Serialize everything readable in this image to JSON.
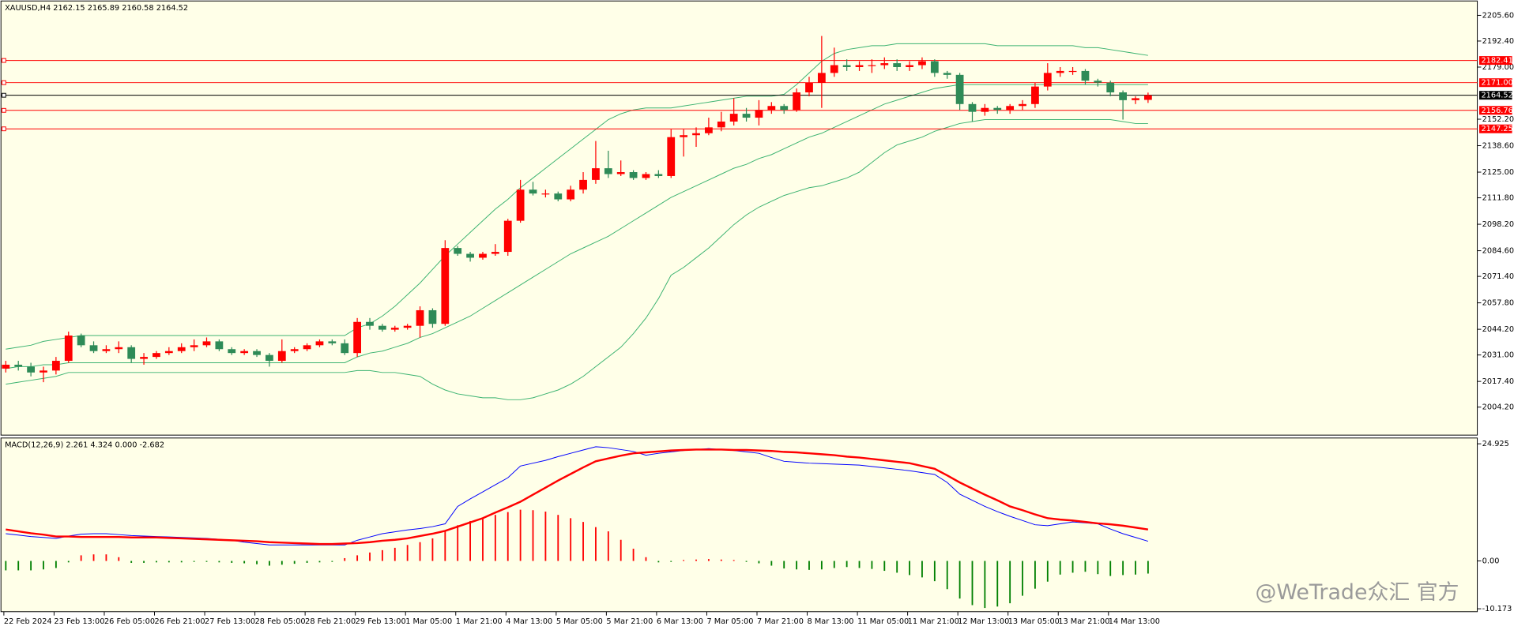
{
  "chart_data": [
    {
      "type": "candlestick",
      "title": "XAUUSD,H4  2162.15 2165.89 2160.58 2164.52",
      "categories": [
        "22 Feb 2024",
        null,
        null,
        null,
        "23 Feb 13:00",
        null,
        null,
        null,
        "26 Feb 05:00",
        null,
        null,
        null,
        "26 Feb 21:00",
        null,
        null,
        null,
        "27 Feb 13:00",
        null,
        null,
        null,
        "28 Feb 05:00",
        null,
        null,
        null,
        "28 Feb 21:00",
        null,
        null,
        null,
        "29 Feb 13:00",
        null,
        null,
        null,
        "1 Mar 05:00",
        null,
        null,
        null,
        "1 Mar 21:00",
        null,
        null,
        null,
        "4 Mar 13:00",
        null,
        null,
        null,
        "5 Mar 05:00",
        null,
        null,
        null,
        "5 Mar 21:00",
        null,
        null,
        null,
        "6 Mar 13:00",
        null,
        null,
        null,
        "7 Mar 05:00",
        null,
        null,
        null,
        "7 Mar 21:00",
        null,
        null,
        null,
        "8 Mar 13:00",
        null,
        null,
        null,
        "11 Mar 05:00",
        null,
        null,
        null,
        "11 Mar 21:00",
        null,
        null,
        null,
        "12 Mar 13:00",
        null,
        null,
        null,
        "13 Mar 05:00",
        null,
        null,
        null,
        "13 Mar 21:00",
        null,
        null,
        null,
        "14 Mar 13:00",
        null,
        null,
        null
      ],
      "open": [
        2024,
        2026,
        2025,
        2022,
        2023,
        2028,
        2041,
        2036,
        2033,
        2034,
        2035,
        2029,
        2030,
        2032,
        2033,
        2035,
        2036,
        2038,
        2034,
        2032,
        2033,
        2031,
        2028,
        2033,
        2034,
        2036,
        2038,
        2037,
        2032,
        2048,
        2046,
        2044,
        2045,
        2046,
        2054,
        2047,
        2086,
        2083,
        2081,
        2083,
        2084,
        2100,
        2116,
        2114,
        2114,
        2111,
        2116,
        2121,
        2127,
        2124,
        2125,
        2122,
        2124,
        2123,
        2143,
        2144,
        2145,
        2148,
        2151,
        2155,
        2153,
        2157,
        2159,
        2157,
        2166,
        2171,
        2176,
        2180,
        2179,
        2180,
        2180,
        2181,
        2179,
        2180,
        2182,
        2176,
        2175,
        2160,
        2156,
        2158,
        2157,
        2159,
        2160,
        2169,
        2176,
        2177,
        2177,
        2172,
        2171,
        2166,
        2162,
        2162.15
      ],
      "high": [
        2028,
        2028,
        2027,
        2025,
        2030,
        2043,
        2042,
        2038,
        2036,
        2038,
        2036,
        2032,
        2033,
        2035,
        2037,
        2039,
        2040,
        2039,
        2035,
        2034,
        2034,
        2032,
        2039,
        2035,
        2037,
        2039,
        2039,
        2039,
        2050,
        2050,
        2047,
        2046,
        2047,
        2056,
        2055,
        2090,
        2087,
        2084,
        2084,
        2088,
        2101,
        2121,
        2120,
        2116,
        2115,
        2118,
        2125,
        2141,
        2136,
        2131,
        2126,
        2125,
        2126,
        2147,
        2147,
        2148,
        2153,
        2156,
        2163,
        2158,
        2162,
        2161,
        2160,
        2168,
        2174,
        2195,
        2189,
        2183,
        2182,
        2183,
        2184,
        2183,
        2182,
        2184,
        2183,
        2177,
        2176,
        2161,
        2160,
        2159,
        2160,
        2162,
        2171,
        2181,
        2179,
        2179,
        2178,
        2173,
        2172,
        2167,
        2164,
        2165.89
      ],
      "low": [
        2022,
        2023,
        2020,
        2017,
        2021,
        2027,
        2035,
        2032,
        2032,
        2032,
        2027,
        2026,
        2029,
        2031,
        2032,
        2033,
        2035,
        2033,
        2031,
        2031,
        2030,
        2025,
        2027,
        2032,
        2033,
        2035,
        2036,
        2031,
        2030,
        2044,
        2043,
        2043,
        2044,
        2040,
        2045,
        2046,
        2082,
        2079,
        2080,
        2082,
        2082,
        2099,
        2113,
        2112,
        2110,
        2110,
        2114,
        2119,
        2122,
        2123,
        2121,
        2121,
        2122,
        2122,
        2133,
        2138,
        2144,
        2146,
        2149,
        2151,
        2149,
        2155,
        2155,
        2156,
        2164,
        2158,
        2174,
        2177,
        2177,
        2176,
        2178,
        2177,
        2177,
        2178,
        2174,
        2173,
        2157,
        2151,
        2154,
        2155,
        2155,
        2157,
        2158,
        2167,
        2174,
        2175,
        2170,
        2169,
        2164,
        2152,
        2160,
        2160.58
      ],
      "close": [
        2026,
        2025,
        2022,
        2023,
        2028,
        2041,
        2036,
        2033,
        2034,
        2035,
        2029,
        2030,
        2032,
        2033,
        2035,
        2036,
        2038,
        2034,
        2032,
        2033,
        2031,
        2028,
        2033,
        2034,
        2036,
        2038,
        2037,
        2032,
        2048,
        2046,
        2044,
        2045,
        2046,
        2054,
        2047,
        2086,
        2083,
        2081,
        2083,
        2084,
        2100,
        2116,
        2114,
        2114,
        2111,
        2116,
        2121,
        2127,
        2124,
        2125,
        2122,
        2124,
        2123,
        2143,
        2144,
        2145,
        2148,
        2151,
        2155,
        2153,
        2157,
        2159,
        2157,
        2166,
        2171,
        2176,
        2180,
        2179,
        2180,
        2180,
        2181,
        2179,
        2180,
        2182,
        2176,
        2175,
        2160,
        2156,
        2158,
        2157,
        2159,
        2160,
        2169,
        2176,
        2177,
        2177,
        2172,
        2171,
        2166,
        2162,
        2163,
        2164.52
      ],
      "color_up": "#ff0000",
      "color_down": "#2e8b57",
      "bands": [
        {
          "color": "#3cb371",
          "values": [
            2034,
            2035,
            2036,
            2038,
            2039,
            2040,
            2041,
            2041,
            2041,
            2041,
            2041,
            2041,
            2041,
            2041,
            2041,
            2041,
            2041,
            2041,
            2041,
            2041,
            2041,
            2041,
            2041,
            2041,
            2041,
            2041,
            2041,
            2041,
            2045,
            2047,
            2051,
            2056,
            2062,
            2068,
            2075,
            2082,
            2088,
            2094,
            2100,
            2106,
            2111,
            2117,
            2122,
            2127,
            2132,
            2137,
            2142,
            2147,
            2152,
            2155,
            2157,
            2158,
            2158,
            2158,
            2159,
            2160,
            2161,
            2162,
            2163,
            2164,
            2164,
            2164,
            2165,
            2170,
            2176,
            2182,
            2186,
            2188,
            2189,
            2190,
            2190,
            2191,
            2191,
            2191,
            2191,
            2191,
            2191,
            2191,
            2191,
            2190,
            2190,
            2190,
            2190,
            2190,
            2190,
            2190,
            2189,
            2189,
            2188,
            2187,
            2186,
            2185
          ]
        },
        {
          "color": "#3cb371",
          "values": [
            2024,
            2025,
            2025,
            2026,
            2026,
            2027,
            2027,
            2027,
            2027,
            2027,
            2027,
            2027,
            2027,
            2027,
            2027,
            2027,
            2027,
            2027,
            2027,
            2027,
            2027,
            2027,
            2027,
            2027,
            2027,
            2027,
            2027,
            2027,
            2030,
            2032,
            2033,
            2035,
            2037,
            2040,
            2042,
            2045,
            2048,
            2051,
            2055,
            2059,
            2063,
            2067,
            2071,
            2075,
            2079,
            2083,
            2086,
            2089,
            2092,
            2096,
            2100,
            2104,
            2108,
            2112,
            2115,
            2118,
            2121,
            2124,
            2127,
            2129,
            2132,
            2134,
            2137,
            2140,
            2143,
            2145,
            2148,
            2151,
            2154,
            2157,
            2160,
            2162,
            2164,
            2166,
            2168,
            2169,
            2170,
            2170,
            2170,
            2170,
            2170,
            2170,
            2170,
            2170,
            2170,
            2170,
            2170,
            2170,
            2170,
            2170,
            2170,
            2170
          ]
        },
        {
          "color": "#3cb371",
          "values": [
            2016,
            2017,
            2018,
            2019,
            2020,
            2022,
            2022,
            2022,
            2022,
            2022,
            2022,
            2022,
            2022,
            2022,
            2022,
            2022,
            2022,
            2022,
            2022,
            2022,
            2022,
            2022,
            2022,
            2022,
            2022,
            2022,
            2022,
            2022,
            2023,
            2023,
            2022,
            2022,
            2021,
            2020,
            2016,
            2013,
            2011,
            2010,
            2009,
            2009,
            2008,
            2008,
            2009,
            2011,
            2013,
            2016,
            2020,
            2025,
            2030,
            2035,
            2042,
            2050,
            2060,
            2072,
            2076,
            2081,
            2086,
            2092,
            2098,
            2103,
            2107,
            2110,
            2113,
            2115,
            2117,
            2118,
            2120,
            2122,
            2125,
            2130,
            2135,
            2139,
            2141,
            2143,
            2146,
            2148,
            2150,
            2151,
            2152,
            2152,
            2152,
            2152,
            2152,
            2152,
            2152,
            2152,
            2152,
            2152,
            2152,
            2151,
            2150,
            2150
          ]
        }
      ],
      "price_lines": [
        {
          "value": 2182.41,
          "label": "2182.41",
          "color": "#ff0000"
        },
        {
          "value": 2171,
          "label": "2171.00",
          "color": "#ff0000"
        },
        {
          "value": 2164.52,
          "label": "2164.52",
          "color": "#000000"
        },
        {
          "value": 2156.76,
          "label": "2156.76",
          "color": "#ff0000"
        },
        {
          "value": 2147.25,
          "label": "2147.25",
          "color": "#ff0000"
        }
      ],
      "ylim": [
        1990.3,
        2212.5
      ],
      "yticks": [
        {
          "value": 2205.6,
          "label": "2205.60"
        },
        {
          "value": 2192.4,
          "label": "2192.40"
        },
        {
          "value": 2179,
          "label": "2179.00"
        },
        {
          "value": 2152.2,
          "label": "2152.20"
        },
        {
          "value": 2138.6,
          "label": "2138.60"
        },
        {
          "value": 2125,
          "label": "2125.00"
        },
        {
          "value": 2111.8,
          "label": "2111.80"
        },
        {
          "value": 2098.2,
          "label": "2098.20"
        },
        {
          "value": 2084.6,
          "label": "2084.60"
        },
        {
          "value": 2071.4,
          "label": "2071.40"
        },
        {
          "value": 2057.8,
          "label": "2057.80"
        },
        {
          "value": 2044.2,
          "label": "2044.20"
        },
        {
          "value": 2031,
          "label": "2031.00"
        },
        {
          "value": 2017.4,
          "label": "2017.40"
        },
        {
          "value": 2004.2,
          "label": "2004.20"
        }
      ]
    },
    {
      "type": "macd",
      "title": "MACD(12,26,9) 2.261 4.324 0.000 -2.682",
      "series": [
        {
          "color": "#0000ff",
          "values": [
            5.8,
            5.5,
            5.2,
            5.0,
            4.8,
            5.3,
            5.7,
            5.8,
            5.8,
            5.6,
            5.4,
            5.3,
            5.2,
            5.1,
            5.0,
            4.9,
            4.8,
            4.6,
            4.4,
            4.0,
            3.7,
            3.4,
            3.4,
            3.4,
            3.4,
            3.4,
            3.4,
            3.4,
            4.4,
            5.1,
            5.8,
            6.2,
            6.6,
            6.9,
            7.3,
            7.9,
            11.6,
            13.2,
            14.7,
            16.2,
            17.7,
            20.2,
            20.8,
            21.4,
            22.2,
            22.9,
            23.6,
            24.3,
            24.1,
            23.7,
            23.3,
            22.5,
            22.9,
            23.2,
            23.5,
            23.7,
            23.9,
            23.7,
            23.5,
            23.2,
            22.9,
            22.0,
            21.2,
            21.0,
            20.8,
            20.7,
            20.6,
            20.5,
            20.4,
            20.1,
            19.8,
            19.5,
            19.2,
            18.8,
            18.4,
            16.7,
            14.2,
            12.9,
            11.6,
            10.5,
            9.5,
            8.6,
            7.7,
            7.5,
            7.9,
            8.3,
            8.1,
            7.9,
            6.8,
            5.8,
            5.0,
            4.2
          ]
        },
        {
          "color": "#ff0000",
          "values": [
            6.7,
            6.3,
            5.9,
            5.6,
            5.2,
            5.2,
            5.1,
            5.1,
            5.1,
            5.1,
            5.0,
            5.0,
            5.0,
            4.9,
            4.8,
            4.7,
            4.6,
            4.5,
            4.4,
            4.3,
            4.2,
            4.0,
            3.9,
            3.8,
            3.7,
            3.6,
            3.6,
            3.7,
            3.8,
            4.0,
            4.3,
            4.5,
            4.8,
            5.3,
            5.8,
            6.4,
            7.3,
            8.2,
            9.1,
            10.3,
            11.4,
            12.6,
            14.1,
            15.6,
            17.1,
            18.5,
            19.9,
            21.2,
            21.8,
            22.4,
            22.9,
            23.1,
            23.3,
            23.5,
            23.6,
            23.7,
            23.7,
            23.7,
            23.6,
            23.6,
            23.5,
            23.4,
            23.2,
            23.1,
            22.9,
            22.7,
            22.5,
            22.2,
            22.0,
            21.7,
            21.4,
            21.1,
            20.8,
            20.2,
            19.6,
            18.2,
            16.7,
            15.4,
            14.1,
            12.9,
            11.6,
            10.8,
            9.9,
            9.1,
            8.8,
            8.6,
            8.3,
            8.0,
            7.8,
            7.5,
            7.1,
            6.7
          ]
        }
      ],
      "histogram": {
        "color_up": "#ff0000",
        "color_down": "#008000",
        "values": [
          -2.0,
          -2.0,
          -2.0,
          -1.8,
          -1.5,
          -0.3,
          1.2,
          1.4,
          1.4,
          0.8,
          -0.4,
          -0.4,
          -0.3,
          -0.3,
          -0.3,
          -0.2,
          -0.2,
          -0.3,
          -0.4,
          -0.5,
          -0.7,
          -1.0,
          -0.8,
          -0.6,
          -0.4,
          -0.3,
          -0.2,
          0.6,
          1.2,
          1.8,
          2.3,
          2.8,
          3.4,
          4.0,
          4.8,
          6.5,
          7.6,
          8.5,
          9.2,
          9.8,
          10.4,
          10.9,
          10.8,
          10.5,
          9.8,
          9.1,
          8.3,
          7.2,
          6.3,
          4.5,
          2.6,
          0.8,
          -0.3,
          -0.2,
          0.2,
          0.3,
          0.4,
          0.3,
          0.2,
          -0.2,
          -0.5,
          -1.0,
          -1.6,
          -1.8,
          -1.9,
          -1.8,
          -1.5,
          -1.3,
          -1.5,
          -1.7,
          -2.1,
          -2.5,
          -3.0,
          -3.5,
          -4.3,
          -6.0,
          -8.0,
          -9.4,
          -10.0,
          -9.7,
          -9.0,
          -7.4,
          -5.9,
          -4.4,
          -2.9,
          -2.5,
          -2.3,
          -2.8,
          -3.2,
          -3.0,
          -2.9,
          -2.682
        ]
      },
      "ylim": [
        -11.2,
        25.95
      ],
      "yticks": [
        24.925,
        {
          "value": 0,
          "label": "0.00"
        },
        -10.173
      ]
    }
  ],
  "watermark": "@WeTrade众汇 官方"
}
